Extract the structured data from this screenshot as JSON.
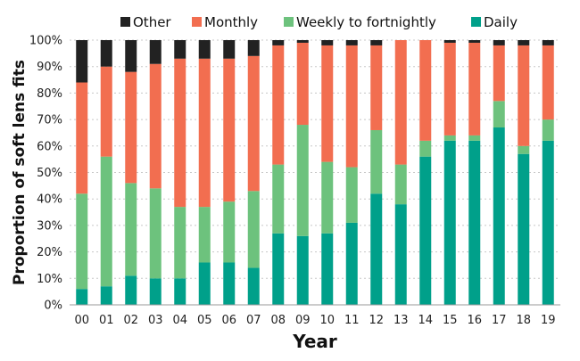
{
  "chart_data": {
    "type": "bar",
    "stacked": true,
    "xlabel": "Year",
    "ylabel": "Proportion of soft lens fits",
    "ylim": [
      0,
      100
    ],
    "yticks": [
      "0%",
      "10%",
      "20%",
      "30%",
      "40%",
      "50%",
      "60%",
      "70%",
      "80%",
      "90%",
      "100%"
    ],
    "categories": [
      "00",
      "01",
      "02",
      "03",
      "04",
      "05",
      "06",
      "07",
      "08",
      "09",
      "10",
      "11",
      "12",
      "13",
      "14",
      "15",
      "16",
      "17",
      "18",
      "19"
    ],
    "legend_position": "top",
    "series": [
      {
        "name": "Daily",
        "color": "#00A08A",
        "values": [
          6,
          7,
          11,
          10,
          10,
          16,
          16,
          14,
          27,
          26,
          27,
          31,
          42,
          38,
          56,
          62,
          62,
          67,
          57,
          62
        ]
      },
      {
        "name": "Weekly to fortnightly",
        "color": "#6DC27D",
        "values": [
          36,
          49,
          35,
          34,
          27,
          21,
          23,
          29,
          26,
          42,
          27,
          21,
          24,
          15,
          6,
          2,
          2,
          10,
          3,
          8
        ]
      },
      {
        "name": "Monthly",
        "color": "#F26E50",
        "values": [
          42,
          34,
          42,
          47,
          56,
          56,
          54,
          51,
          45,
          31,
          44,
          46,
          32,
          47,
          38,
          35,
          35,
          21,
          38,
          28
        ]
      },
      {
        "name": "Other",
        "color": "#222222",
        "values": [
          16,
          10,
          12,
          9,
          7,
          7,
          7,
          6,
          2,
          1,
          2,
          2,
          2,
          0,
          0,
          1,
          1,
          2,
          2,
          2
        ]
      }
    ],
    "legend_order": [
      "Other",
      "Monthly",
      "Weekly to fortnightly",
      "Daily"
    ]
  }
}
